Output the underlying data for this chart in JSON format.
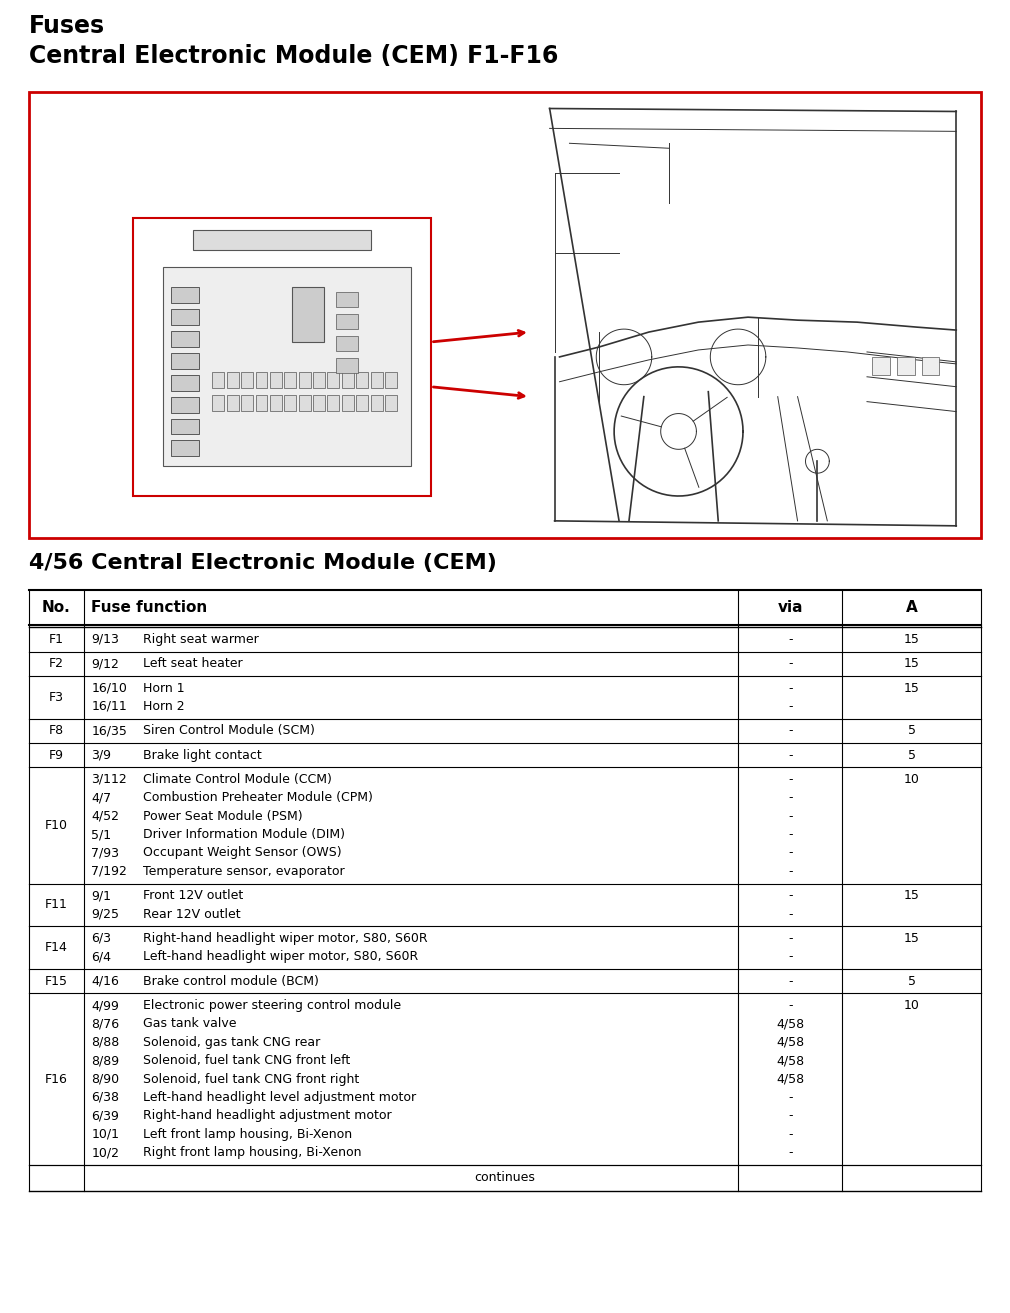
{
  "title_line1": "Fuses",
  "title_line2": "Central Electronic Module (CEM) F1-F16",
  "subtitle": "4/56 Central Electronic Module (CEM)",
  "bg_color": "#ffffff",
  "table_header": [
    "No.",
    "Fuse function",
    "via",
    "A"
  ],
  "rows": [
    {
      "no": "F1",
      "sub": [
        [
          "9/13",
          "Right seat warmer"
        ]
      ],
      "via": [
        "-"
      ],
      "amp": "15"
    },
    {
      "no": "F2",
      "sub": [
        [
          "9/12",
          "Left seat heater"
        ]
      ],
      "via": [
        "-"
      ],
      "amp": "15"
    },
    {
      "no": "F3",
      "sub": [
        [
          "16/10",
          "Horn 1"
        ],
        [
          "16/11",
          "Horn 2"
        ]
      ],
      "via": [
        "-",
        "-"
      ],
      "amp": "15"
    },
    {
      "no": "F8",
      "sub": [
        [
          "16/35",
          "Siren Control Module (SCM)"
        ]
      ],
      "via": [
        "-"
      ],
      "amp": "5"
    },
    {
      "no": "F9",
      "sub": [
        [
          "3/9",
          "Brake light contact"
        ]
      ],
      "via": [
        "-"
      ],
      "amp": "5"
    },
    {
      "no": "F10",
      "sub": [
        [
          "3/112",
          "Climate Control Module (CCM)"
        ],
        [
          "4/7",
          "Combustion Preheater Module (CPM)"
        ],
        [
          "4/52",
          "Power Seat Module (PSM)"
        ],
        [
          "5/1",
          "Driver Information Module (DIM)"
        ],
        [
          "7/93",
          "Occupant Weight Sensor (OWS)"
        ],
        [
          "7/192",
          "Temperature sensor, evaporator"
        ]
      ],
      "via": [
        "-",
        "-",
        "-",
        "-",
        "-",
        "-"
      ],
      "amp": "10"
    },
    {
      "no": "F11",
      "sub": [
        [
          "9/1",
          "Front 12V outlet"
        ],
        [
          "9/25",
          "Rear 12V outlet"
        ]
      ],
      "via": [
        "-",
        "-"
      ],
      "amp": "15"
    },
    {
      "no": "F14",
      "sub": [
        [
          "6/3",
          "Right-hand headlight wiper motor, S80, S60R"
        ],
        [
          "6/4",
          "Left-hand headlight wiper motor, S80, S60R"
        ]
      ],
      "via": [
        "-",
        "-"
      ],
      "amp": "15"
    },
    {
      "no": "F15",
      "sub": [
        [
          "4/16",
          "Brake control module (BCM)"
        ]
      ],
      "via": [
        "-"
      ],
      "amp": "5"
    },
    {
      "no": "F16",
      "sub": [
        [
          "4/99",
          "Electronic power steering control module"
        ],
        [
          "8/76",
          "Gas tank valve"
        ],
        [
          "8/88",
          "Solenoid, gas tank CNG rear"
        ],
        [
          "8/89",
          "Solenoid, fuel tank CNG front left"
        ],
        [
          "8/90",
          "Solenoid, fuel tank CNG front right"
        ],
        [
          "6/38",
          "Left-hand headlight level adjustment motor"
        ],
        [
          "6/39",
          "Right-hand headlight adjustment motor"
        ],
        [
          "10/1",
          "Left front lamp housing, Bi-Xenon"
        ],
        [
          "10/2",
          "Right front lamp housing, Bi-Xenon"
        ]
      ],
      "via": [
        "-",
        "4/58",
        "4/58",
        "4/58",
        "4/58",
        "-",
        "-",
        "-",
        "-"
      ],
      "amp": "10"
    }
  ],
  "footer_text": "continues",
  "image_box_color": "#cc0000",
  "text_color": "#000000",
  "border_color": "#000000"
}
